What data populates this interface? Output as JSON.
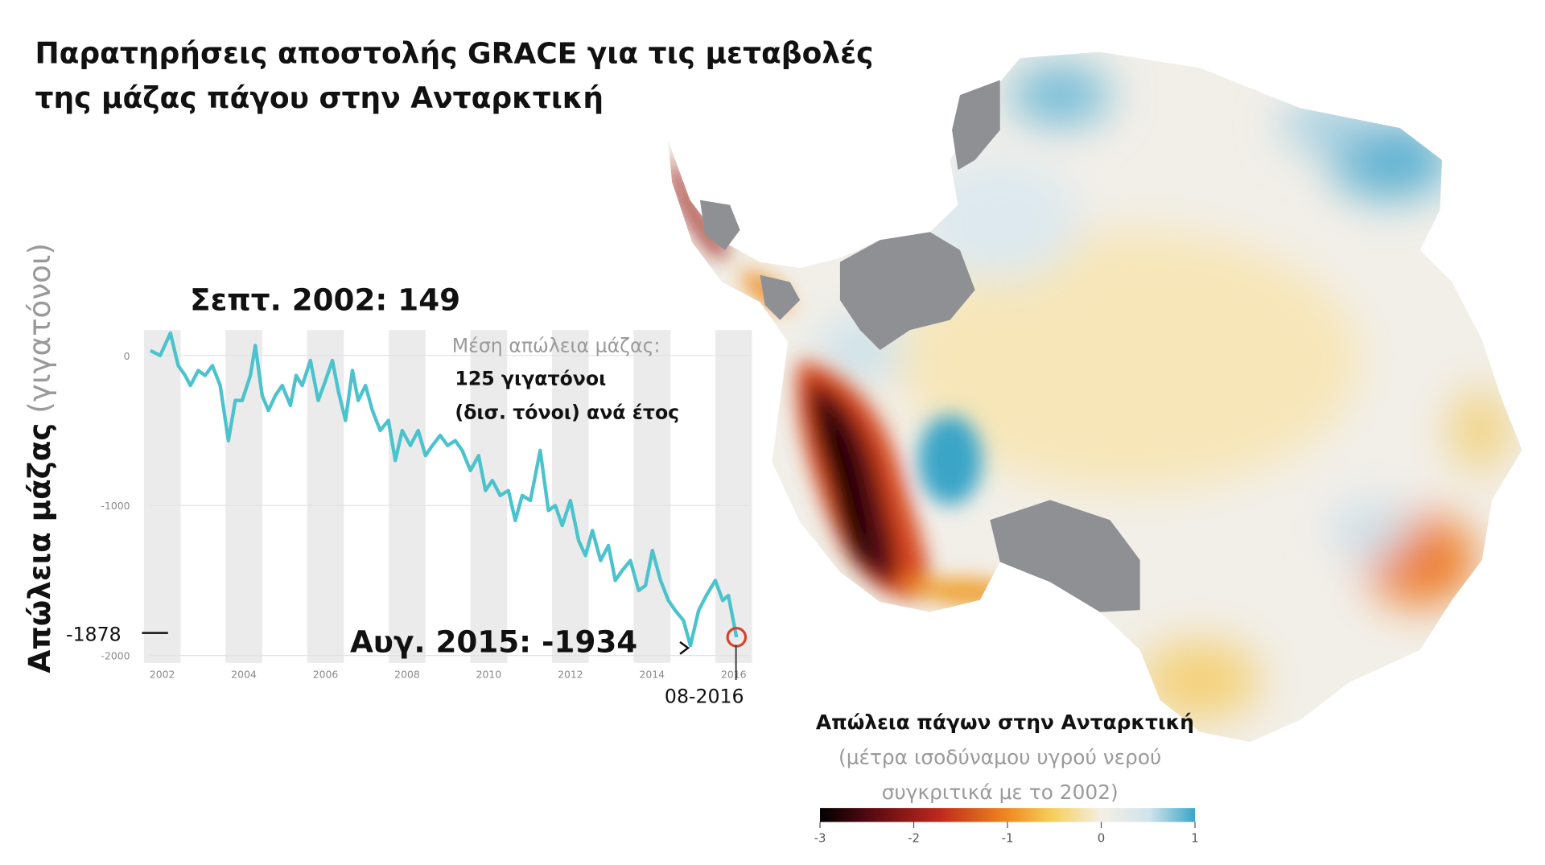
{
  "chart_data": {
    "type": "line",
    "title": [
      "Παρατηρήσεις αποστολής GRACE για τις μεταβολές",
      "της μάζας πάγου στην Ανταρκτική"
    ],
    "ylabel": {
      "main": "Απώλεια μάζας",
      "unit": "(γιγατόνοι)"
    },
    "x": [
      2001.71,
      2001.95,
      2002.2,
      2002.39,
      2002.56,
      2002.69,
      2002.88,
      2003.05,
      2003.23,
      2003.42,
      2003.62,
      2003.79,
      2003.96,
      2004.16,
      2004.28,
      2004.45,
      2004.6,
      2004.77,
      2004.94,
      2005.14,
      2005.28,
      2005.43,
      2005.63,
      2005.82,
      2006.0,
      2006.17,
      2006.31,
      2006.49,
      2006.66,
      2006.8,
      2006.98,
      2007.15,
      2007.34,
      2007.54,
      2007.71,
      2007.88,
      2008.08,
      2008.27,
      2008.45,
      2008.62,
      2008.81,
      2008.99,
      2009.18,
      2009.35,
      2009.55,
      2009.75,
      2009.92,
      2010.09,
      2010.28,
      2010.48,
      2010.65,
      2010.82,
      2011.02,
      2011.26,
      2011.46,
      2011.63,
      2011.8,
      2012.0,
      2012.2,
      2012.37,
      2012.54,
      2012.74,
      2012.93,
      2013.1,
      2013.27,
      2013.47,
      2013.67,
      2013.84,
      2014.01,
      2014.21,
      2014.4,
      2014.57,
      2014.77,
      2014.94,
      2015.14,
      2015.33,
      2015.55,
      2015.73,
      2015.87,
      2016.07
    ],
    "values": [
      33,
      0,
      149,
      -67,
      -133,
      -200,
      -100,
      -133,
      -67,
      -200,
      -567,
      -300,
      -300,
      -133,
      67,
      -267,
      -367,
      -267,
      -200,
      -333,
      -133,
      -200,
      -33,
      -300,
      -167,
      -33,
      -233,
      -433,
      -100,
      -300,
      -200,
      -367,
      -500,
      -433,
      -700,
      -500,
      -600,
      -500,
      -667,
      -600,
      -533,
      -600,
      -567,
      -633,
      -767,
      -667,
      -900,
      -833,
      -933,
      -900,
      -1100,
      -933,
      -967,
      -633,
      -1033,
      -1000,
      -1133,
      -967,
      -1233,
      -1333,
      -1167,
      -1367,
      -1267,
      -1500,
      -1433,
      -1367,
      -1567,
      -1533,
      -1300,
      -1500,
      -1633,
      -1700,
      -1767,
      -1934,
      -1700,
      -1600,
      -1500,
      -1633,
      -1600,
      -1878
    ],
    "color": "#4cc3cc",
    "xlim": [
      2001.7,
      2016.4
    ],
    "xticks": [
      2002,
      2004,
      2006,
      2008,
      2010,
      2012,
      2014,
      2016
    ],
    "ylim": [
      -2050,
      170
    ],
    "yticks": [
      0,
      -1000,
      -2000
    ],
    "grid": true,
    "annotations": [
      "Σεπτ. 2002: 149",
      "Μέση απώλεια μάζας:",
      "125 γιγατόνοι",
      "(δισ. τόνοι) ανά έτος",
      "Αυγ. 2015: -1934",
      "08-2016",
      "-1878"
    ]
  },
  "map_legend": {
    "title": "Απώλεια πάγων στην Ανταρκτική",
    "subtitle": [
      "(μέτρα ισοδύναμου υγρού νερού",
      "συγκριτικά με το 2002)"
    ],
    "lim": [
      -3,
      1
    ],
    "ticks": [
      -3,
      -2,
      -1,
      0,
      1
    ]
  }
}
